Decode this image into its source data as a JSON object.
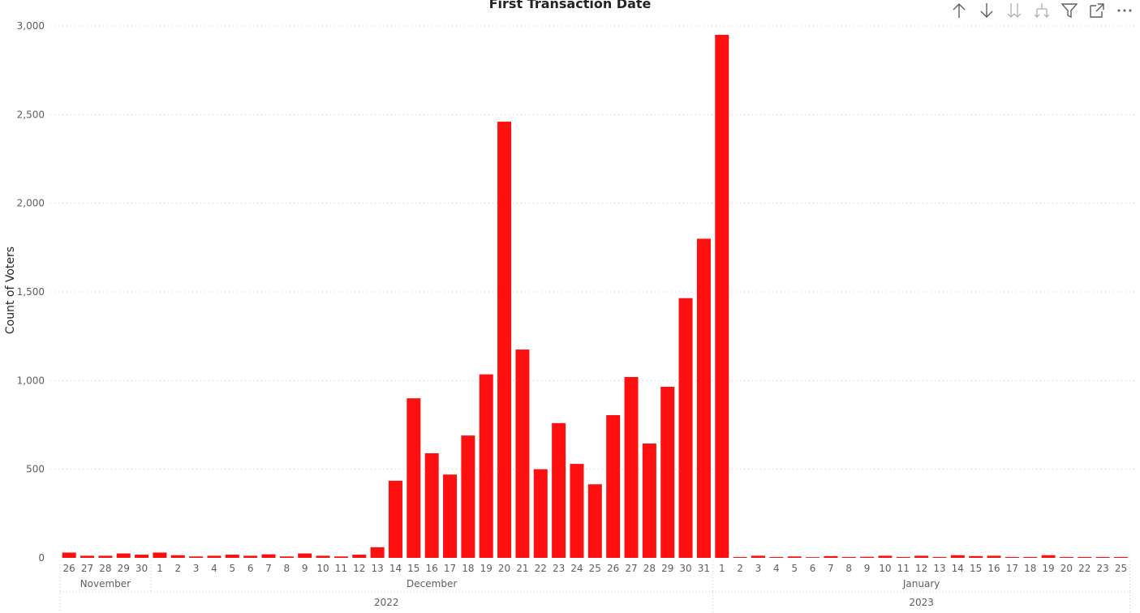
{
  "chart_data": {
    "type": "bar",
    "title": "First Transaction Date",
    "xlabel": "",
    "ylabel": "Count of Voters",
    "ylim": [
      0,
      3000
    ],
    "yticks": [
      "0",
      "500",
      "1,000",
      "1,500",
      "2,000",
      "2,500",
      "3,000"
    ],
    "grid": true,
    "color": "#FF1010",
    "categories": [
      "26",
      "27",
      "28",
      "29",
      "30",
      "1",
      "2",
      "3",
      "4",
      "5",
      "6",
      "7",
      "8",
      "9",
      "10",
      "11",
      "12",
      "13",
      "14",
      "15",
      "16",
      "17",
      "18",
      "19",
      "20",
      "21",
      "22",
      "23",
      "24",
      "25",
      "26",
      "27",
      "28",
      "29",
      "30",
      "31",
      "1",
      "2",
      "3",
      "4",
      "5",
      "6",
      "7",
      "8",
      "9",
      "10",
      "11",
      "12",
      "13",
      "14",
      "15",
      "16",
      "17",
      "18",
      "19",
      "20",
      "22",
      "23",
      "25"
    ],
    "values": [
      30,
      12,
      12,
      25,
      18,
      30,
      15,
      8,
      12,
      18,
      12,
      20,
      8,
      25,
      12,
      8,
      18,
      60,
      435,
      900,
      590,
      470,
      690,
      1035,
      2460,
      1175,
      500,
      760,
      530,
      415,
      805,
      1020,
      645,
      965,
      1465,
      1800,
      2950,
      5,
      12,
      5,
      8,
      4,
      10,
      5,
      6,
      12,
      5,
      12,
      5,
      15,
      10,
      12,
      5,
      5,
      15,
      5,
      5,
      5,
      5
    ],
    "months": [
      {
        "label": "November",
        "count": 5
      },
      {
        "label": "December",
        "count": 31
      },
      {
        "label": "January",
        "count": 23
      }
    ],
    "years": [
      {
        "label": "2022",
        "count": 36
      },
      {
        "label": "2023",
        "count": 23
      }
    ]
  },
  "toolbar": {
    "icons": [
      "arrow-up-icon",
      "arrow-down-icon",
      "double-arrow-down-icon",
      "expand-hierarchy-icon",
      "filter-icon",
      "focus-mode-icon",
      "more-options-icon"
    ]
  }
}
